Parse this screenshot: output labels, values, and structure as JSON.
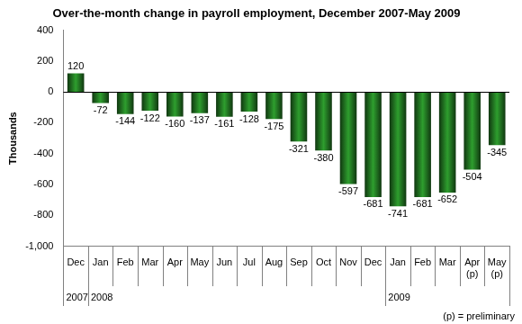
{
  "chart_data": {
    "type": "bar",
    "title": "Over-the-month change in payroll employment, December 2007-May 2009",
    "y_label": "Thousands",
    "categories": [
      [
        "Dec"
      ],
      [
        "Jan"
      ],
      [
        "Feb"
      ],
      [
        "Mar"
      ],
      [
        "Apr"
      ],
      [
        "May"
      ],
      [
        "Jun"
      ],
      [
        "Jul"
      ],
      [
        "Aug"
      ],
      [
        "Sep"
      ],
      [
        "Oct"
      ],
      [
        "Nov"
      ],
      [
        "Dec"
      ],
      [
        "Jan"
      ],
      [
        "Feb"
      ],
      [
        "Mar"
      ],
      [
        "Apr",
        "(p)"
      ],
      [
        "May",
        "(p)"
      ]
    ],
    "category_groups": [
      {
        "label": "2007",
        "count": 1
      },
      {
        "label": "2008",
        "count": 12
      },
      {
        "label": "2009",
        "count": 5
      }
    ],
    "values": [
      120,
      -72,
      -144,
      -122,
      -160,
      -137,
      -161,
      -128,
      -175,
      -321,
      -380,
      -597,
      -681,
      -741,
      -681,
      -652,
      -504,
      -345
    ],
    "color": "#2e9e2e",
    "ylim": [
      -1000,
      400
    ],
    "yticks": [
      {
        "value": -1000,
        "label": "-1,000"
      },
      -800,
      -600,
      -400,
      -200,
      0,
      200,
      400
    ],
    "grid": false,
    "data_labels": true,
    "note": "(p) = preliminary"
  }
}
